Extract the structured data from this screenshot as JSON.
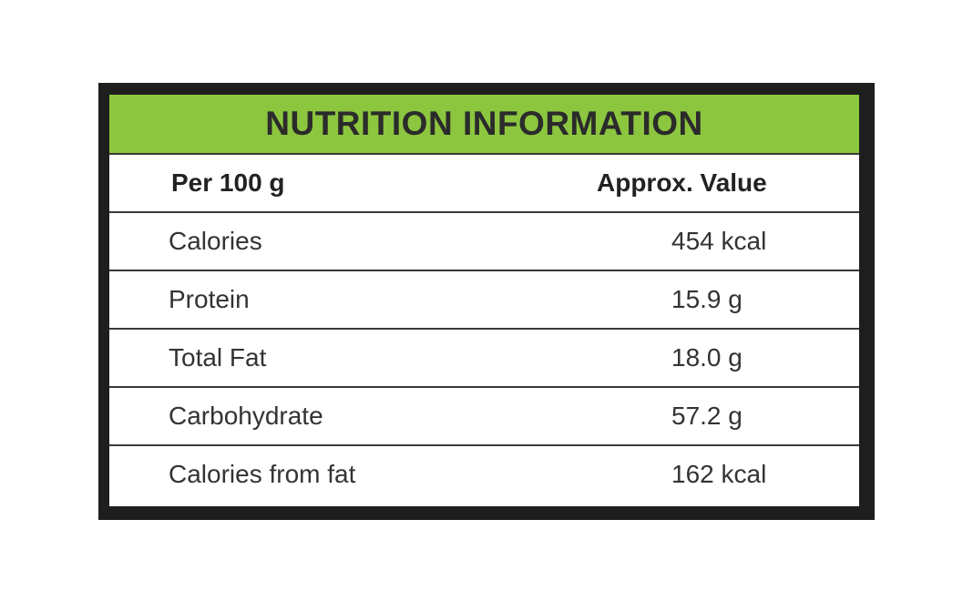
{
  "title": "NUTRITION INFORMATION",
  "table": {
    "header": [
      "Per 100 g",
      "Approx. Value"
    ],
    "rows": [
      [
        "Calories",
        "454 kcal"
      ],
      [
        "Protein",
        "15.9 g"
      ],
      [
        "Total Fat",
        "18.0 g"
      ],
      [
        "Carbohydrate",
        "57.2 g"
      ],
      [
        "Calories from fat",
        "162 kcal"
      ]
    ]
  }
}
